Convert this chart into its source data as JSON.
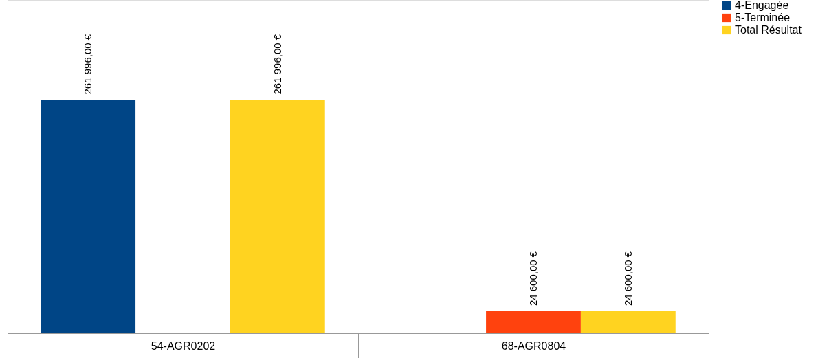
{
  "chart_data": {
    "type": "bar",
    "categories": [
      "54-AGR0202",
      "68-AGR0804"
    ],
    "series": [
      {
        "name": "4-Engagée",
        "color": "#004586",
        "values": [
          261996,
          null
        ],
        "value_labels": [
          "261 996,00 €",
          null
        ]
      },
      {
        "name": "5-Terminée",
        "color": "#ff420e",
        "values": [
          null,
          24600
        ],
        "value_labels": [
          null,
          "24 600,00 €"
        ]
      },
      {
        "name": "Total Résultat",
        "color": "#ffd320",
        "values": [
          261996,
          24600
        ],
        "value_labels": [
          "261 996,00 €",
          "24 600,00 €"
        ]
      }
    ],
    "legend": "right",
    "grid": false
  }
}
